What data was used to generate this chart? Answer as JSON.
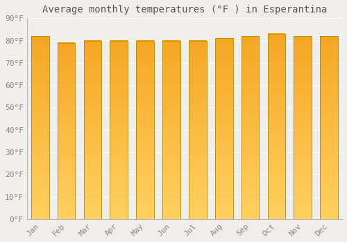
{
  "title": "Average monthly temperatures (°F ) in Esperantina",
  "months": [
    "Jan",
    "Feb",
    "Mar",
    "Apr",
    "May",
    "Jun",
    "Jul",
    "Aug",
    "Sep",
    "Oct",
    "Nov",
    "Dec"
  ],
  "values": [
    82,
    79,
    80,
    80,
    80,
    80,
    80,
    81,
    82,
    83,
    82,
    82
  ],
  "bar_color_top": "#F5A623",
  "bar_color_bottom": "#FFD060",
  "bar_edge_color": "#B8860B",
  "ylim": [
    0,
    90
  ],
  "yticks": [
    0,
    10,
    20,
    30,
    40,
    50,
    60,
    70,
    80,
    90
  ],
  "ytick_labels": [
    "0°F",
    "10°F",
    "20°F",
    "30°F",
    "40°F",
    "50°F",
    "60°F",
    "70°F",
    "80°F",
    "90°F"
  ],
  "background_color": "#f0eeea",
  "grid_color": "#e8e8e8",
  "title_fontsize": 10,
  "tick_fontsize": 8,
  "font_color": "#888888",
  "title_color": "#555555"
}
